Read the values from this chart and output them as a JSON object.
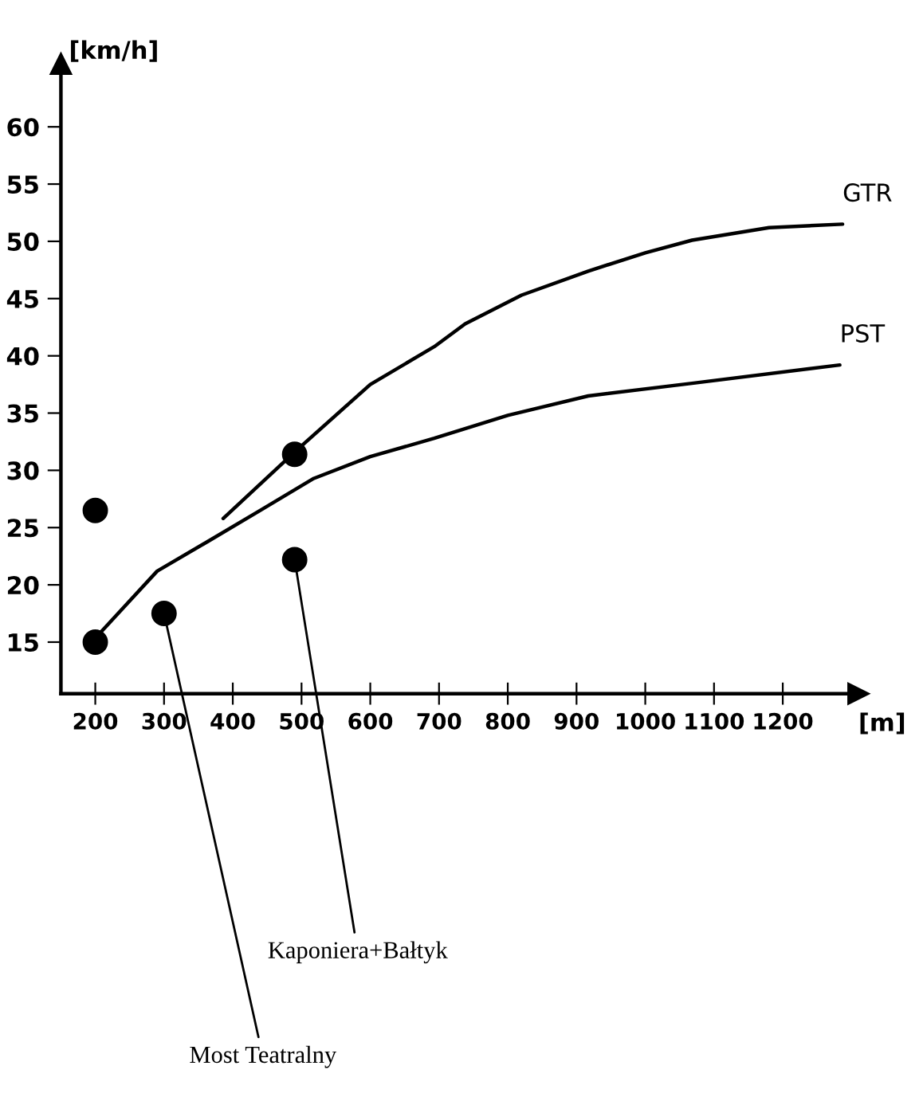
{
  "chart_data": {
    "type": "line",
    "xlabel": "[m]",
    "ylabel": "[km/h]",
    "xlim": [
      150,
      1310
    ],
    "ylim": [
      10.5,
      65.5
    ],
    "xticks": [
      200,
      300,
      400,
      500,
      600,
      700,
      800,
      900,
      1000,
      1100,
      1200
    ],
    "yticks": [
      15,
      20,
      25,
      30,
      35,
      40,
      45,
      50,
      55,
      60
    ],
    "grid": false,
    "legend": false,
    "series": [
      {
        "name": "GTR",
        "type": "line",
        "color": "#000000",
        "marker": "none",
        "x": [
          386,
          490,
          600,
          693,
          738,
          820,
          917,
          1000,
          1068,
          1180,
          1287
        ],
        "values": [
          25.8,
          31.6,
          37.5,
          40.8,
          42.8,
          45.3,
          47.4,
          49.0,
          50.1,
          51.2,
          51.5
        ]
      },
      {
        "name": "PST",
        "type": "line",
        "color": "#000000",
        "marker": "none",
        "x": [
          207,
          290,
          364,
          440,
          518,
          600,
          693,
          800,
          917,
          1068,
          1283
        ],
        "values": [
          15.8,
          21.2,
          23.8,
          26.5,
          29.3,
          31.2,
          32.8,
          34.8,
          36.5,
          37.6,
          39.2
        ]
      },
      {
        "type": "scatter",
        "color": "#000000",
        "marker": "circle",
        "x": [
          200,
          200,
          300,
          490,
          490
        ],
        "values": [
          15,
          26.5,
          17.5,
          31.4,
          22.2
        ]
      }
    ],
    "annotations": [
      {
        "text": "Kaponiera+Bałtyk",
        "x": 490,
        "y": 22.2
      },
      {
        "text": "Most Teatralny",
        "x": 300,
        "y": 17.5
      }
    ]
  }
}
